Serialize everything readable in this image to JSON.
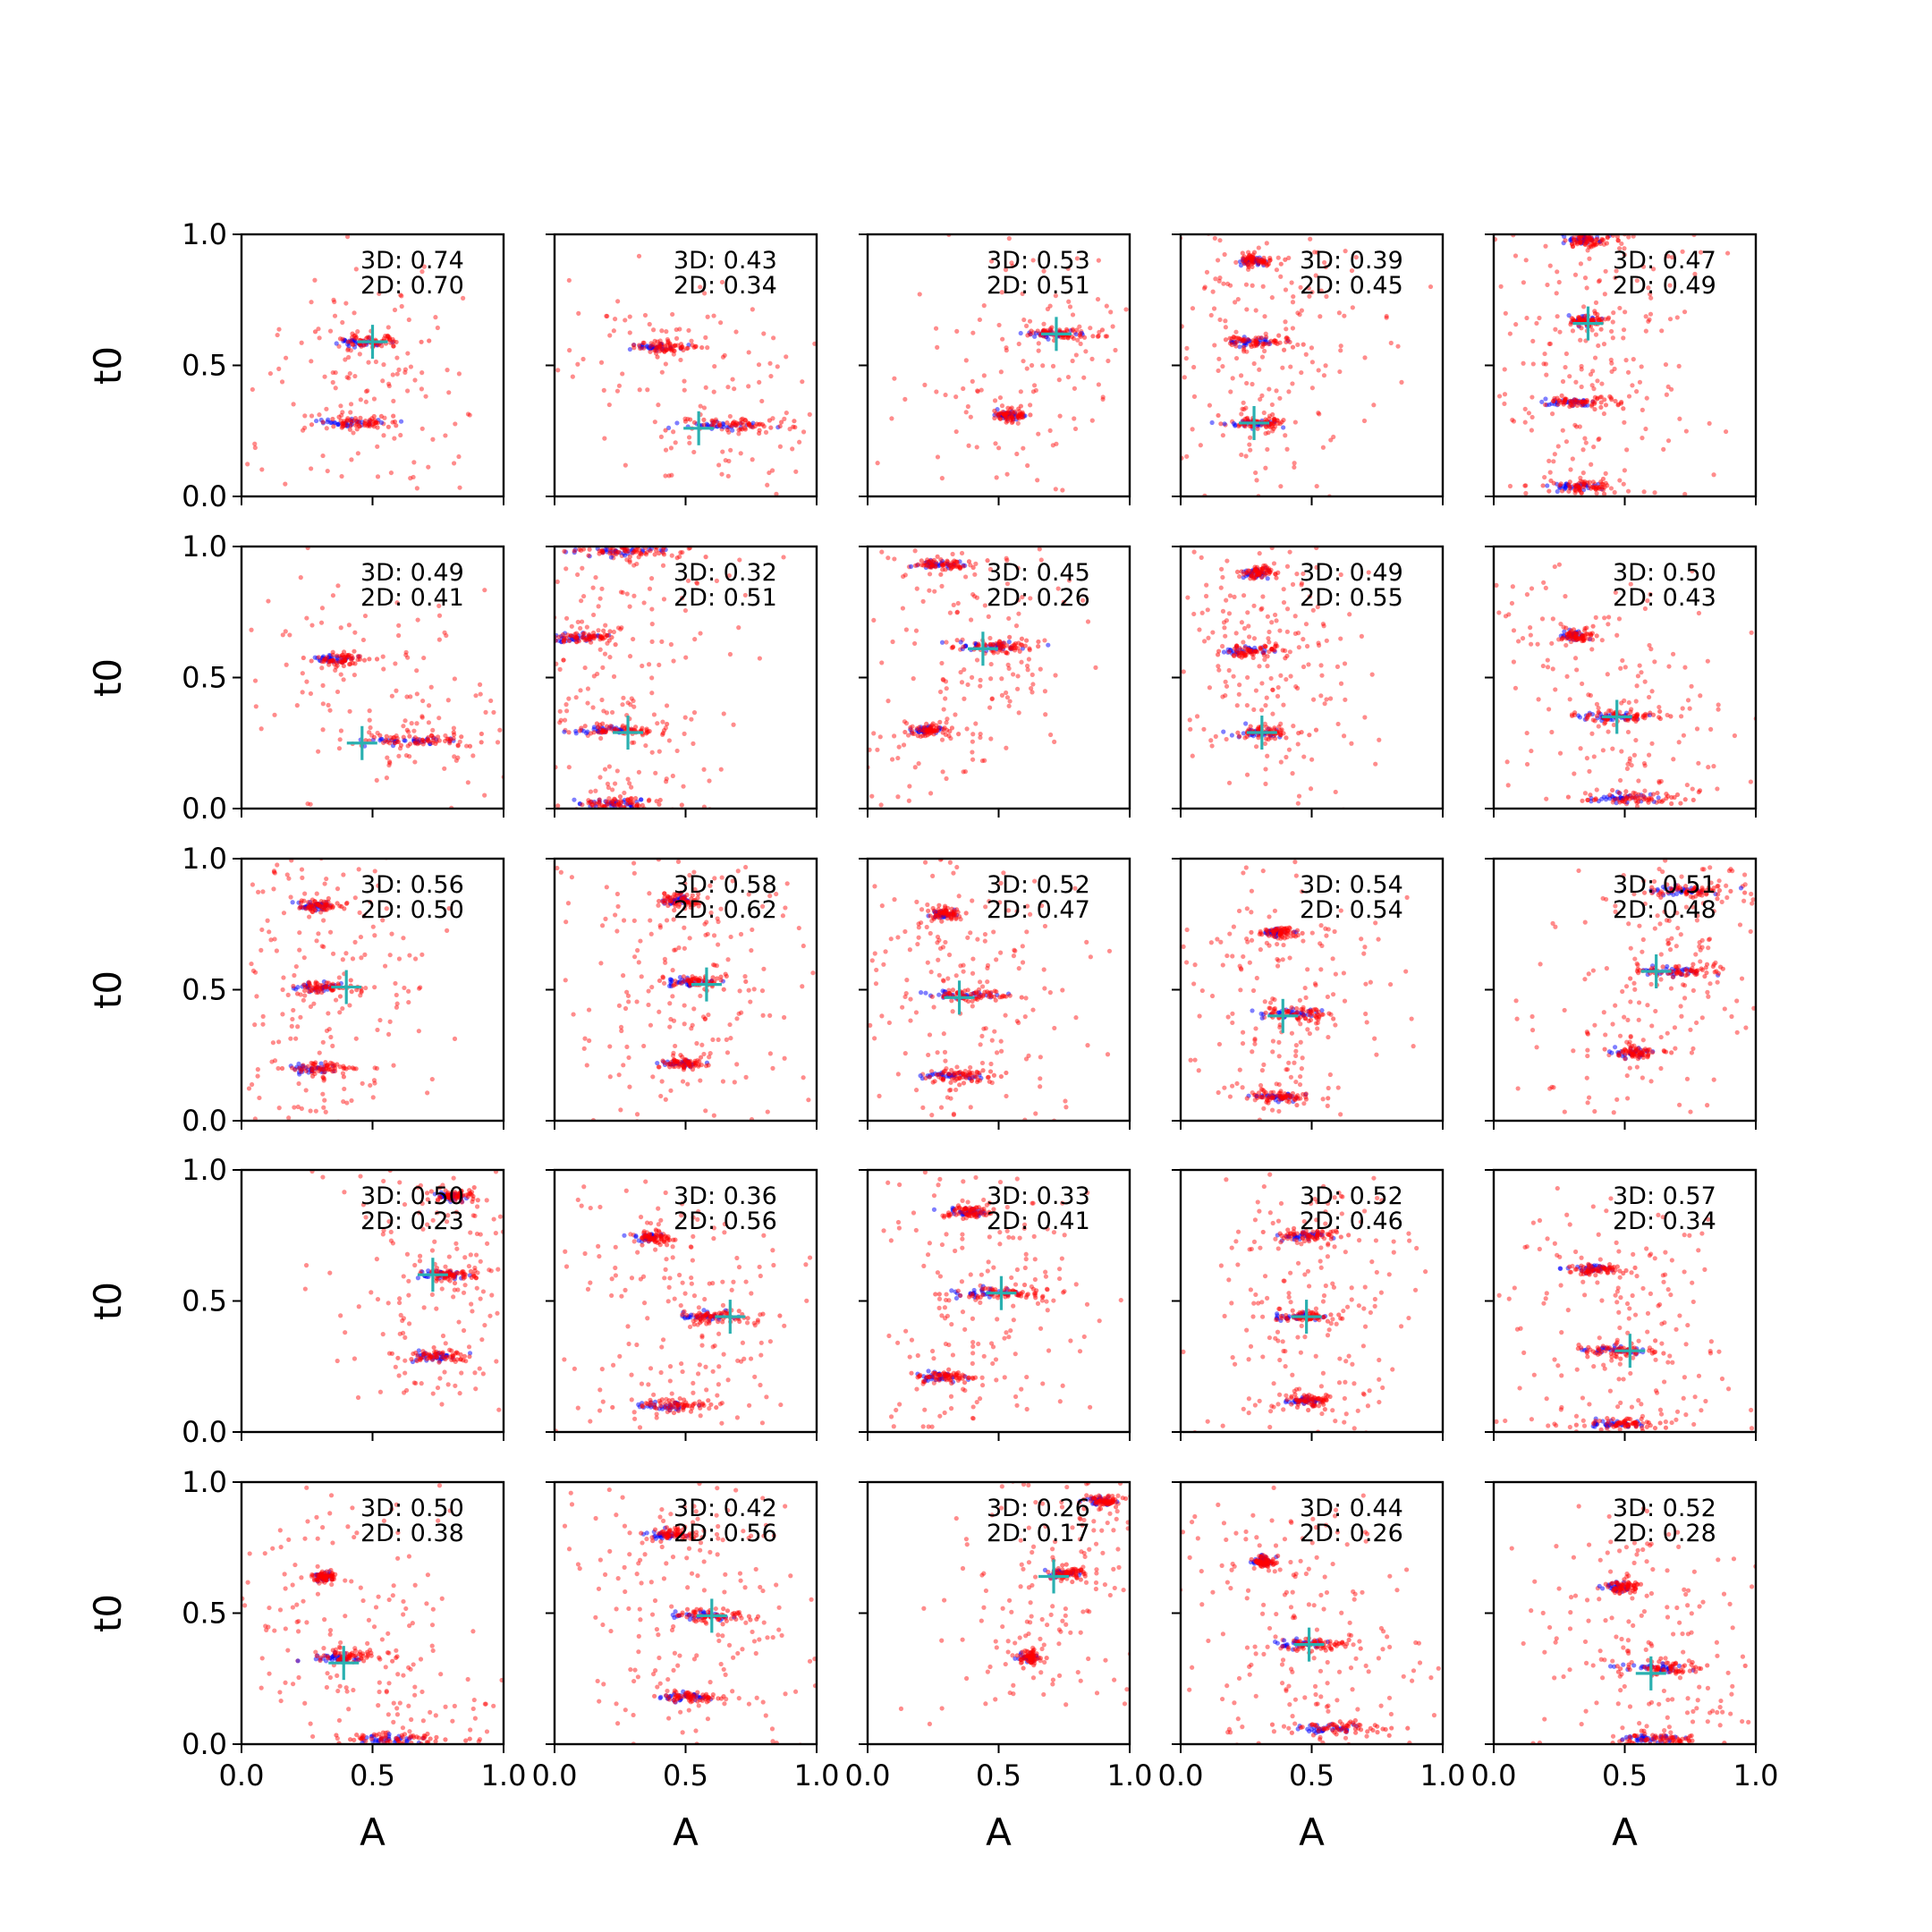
{
  "chart_data": {
    "type": "scatter",
    "layout": {
      "rows": 5,
      "cols": 5
    },
    "xlabel": "A",
    "ylabel": "t0",
    "xlim": [
      0,
      1
    ],
    "ylim": [
      0,
      1
    ],
    "xticks": [
      0.0,
      0.5,
      1.0
    ],
    "yticks": [
      0.0,
      0.5,
      1.0
    ],
    "x_tick_labels": [
      "0.0",
      "0.5",
      "1.0"
    ],
    "y_tick_labels": [
      "0.0",
      "0.5",
      "1.0"
    ],
    "grid": false,
    "colors": {
      "samples_red": "#ff0000",
      "samples_blue": "#0000ff",
      "marker": "#2ab0b0"
    },
    "panels": [
      {
        "annotation_3d": "3D: 0.74",
        "annotation_2d": "2D: 0.70",
        "marker": [
          0.5,
          0.59
        ],
        "clusters": [
          {
            "x": 0.5,
            "y": 0.59,
            "spread": 0.12
          },
          {
            "x": 0.45,
            "y": 0.28,
            "spread": 0.12
          }
        ]
      },
      {
        "annotation_3d": "3D: 0.43",
        "annotation_2d": "2D: 0.34",
        "marker": [
          0.55,
          0.26
        ],
        "clusters": [
          {
            "x": 0.42,
            "y": 0.57,
            "spread": 0.1
          },
          {
            "x": 0.7,
            "y": 0.27,
            "spread": 0.18
          }
        ]
      },
      {
        "annotation_3d": "3D: 0.53",
        "annotation_2d": "2D: 0.51",
        "marker": [
          0.72,
          0.62
        ],
        "clusters": [
          {
            "x": 0.74,
            "y": 0.62,
            "spread": 0.12
          },
          {
            "x": 0.55,
            "y": 0.31,
            "spread": 0.06
          }
        ]
      },
      {
        "annotation_3d": "3D: 0.39",
        "annotation_2d": "2D: 0.45",
        "marker": [
          0.28,
          0.28
        ],
        "clusters": [
          {
            "x": 0.29,
            "y": 0.9,
            "spread": 0.06
          },
          {
            "x": 0.3,
            "y": 0.59,
            "spread": 0.12
          },
          {
            "x": 0.3,
            "y": 0.28,
            "spread": 0.1
          }
        ]
      },
      {
        "annotation_3d": "3D: 0.47",
        "annotation_2d": "2D: 0.49",
        "marker": [
          0.36,
          0.66
        ],
        "clusters": [
          {
            "x": 0.36,
            "y": 0.98,
            "spread": 0.08
          },
          {
            "x": 0.36,
            "y": 0.67,
            "spread": 0.06
          },
          {
            "x": 0.35,
            "y": 0.36,
            "spread": 0.12
          },
          {
            "x": 0.35,
            "y": 0.04,
            "spread": 0.12
          }
        ]
      },
      {
        "annotation_3d": "3D: 0.49",
        "annotation_2d": "2D: 0.41",
        "marker": [
          0.46,
          0.25
        ],
        "clusters": [
          {
            "x": 0.38,
            "y": 0.57,
            "spread": 0.1
          },
          {
            "x": 0.7,
            "y": 0.26,
            "spread": 0.2
          }
        ]
      },
      {
        "annotation_3d": "3D: 0.32",
        "annotation_2d": "2D: 0.51",
        "marker": [
          0.28,
          0.29
        ],
        "clusters": [
          {
            "x": 0.25,
            "y": 0.3,
            "spread": 0.14
          },
          {
            "x": 0.12,
            "y": 0.65,
            "spread": 0.1
          },
          {
            "x": 0.3,
            "y": 0.98,
            "spread": 0.2
          },
          {
            "x": 0.25,
            "y": 0.02,
            "spread": 0.15
          }
        ]
      },
      {
        "annotation_3d": "3D: 0.45",
        "annotation_2d": "2D: 0.26",
        "marker": [
          0.44,
          0.61
        ],
        "clusters": [
          {
            "x": 0.3,
            "y": 0.93,
            "spread": 0.1
          },
          {
            "x": 0.5,
            "y": 0.62,
            "spread": 0.16
          },
          {
            "x": 0.25,
            "y": 0.3,
            "spread": 0.08
          }
        ]
      },
      {
        "annotation_3d": "3D: 0.49",
        "annotation_2d": "2D: 0.55",
        "marker": [
          0.31,
          0.29
        ],
        "clusters": [
          {
            "x": 0.3,
            "y": 0.9,
            "spread": 0.06
          },
          {
            "x": 0.28,
            "y": 0.6,
            "spread": 0.1
          },
          {
            "x": 0.32,
            "y": 0.29,
            "spread": 0.1
          }
        ]
      },
      {
        "annotation_3d": "3D: 0.50",
        "annotation_2d": "2D: 0.43",
        "marker": [
          0.47,
          0.35
        ],
        "clusters": [
          {
            "x": 0.32,
            "y": 0.66,
            "spread": 0.05
          },
          {
            "x": 0.48,
            "y": 0.35,
            "spread": 0.14
          },
          {
            "x": 0.55,
            "y": 0.04,
            "spread": 0.18
          }
        ]
      },
      {
        "annotation_3d": "3D: 0.56",
        "annotation_2d": "2D: 0.50",
        "marker": [
          0.4,
          0.51
        ],
        "clusters": [
          {
            "x": 0.3,
            "y": 0.82,
            "spread": 0.08
          },
          {
            "x": 0.32,
            "y": 0.51,
            "spread": 0.12
          },
          {
            "x": 0.3,
            "y": 0.2,
            "spread": 0.12
          }
        ]
      },
      {
        "annotation_3d": "3D: 0.58",
        "annotation_2d": "2D: 0.62",
        "marker": [
          0.58,
          0.52
        ],
        "clusters": [
          {
            "x": 0.48,
            "y": 0.84,
            "spread": 0.06
          },
          {
            "x": 0.55,
            "y": 0.53,
            "spread": 0.12
          },
          {
            "x": 0.5,
            "y": 0.22,
            "spread": 0.08
          }
        ]
      },
      {
        "annotation_3d": "3D: 0.52",
        "annotation_2d": "2D: 0.47",
        "marker": [
          0.35,
          0.47
        ],
        "clusters": [
          {
            "x": 0.3,
            "y": 0.79,
            "spread": 0.06
          },
          {
            "x": 0.4,
            "y": 0.48,
            "spread": 0.14
          },
          {
            "x": 0.35,
            "y": 0.17,
            "spread": 0.12
          }
        ]
      },
      {
        "annotation_3d": "3D: 0.54",
        "annotation_2d": "2D: 0.54",
        "marker": [
          0.39,
          0.4
        ],
        "clusters": [
          {
            "x": 0.38,
            "y": 0.72,
            "spread": 0.06
          },
          {
            "x": 0.45,
            "y": 0.41,
            "spread": 0.14
          },
          {
            "x": 0.4,
            "y": 0.09,
            "spread": 0.1
          }
        ]
      },
      {
        "annotation_3d": "3D: 0.51",
        "annotation_2d": "2D: 0.48",
        "marker": [
          0.62,
          0.57
        ],
        "clusters": [
          {
            "x": 0.75,
            "y": 0.88,
            "spread": 0.14
          },
          {
            "x": 0.72,
            "y": 0.57,
            "spread": 0.14
          },
          {
            "x": 0.55,
            "y": 0.26,
            "spread": 0.08
          }
        ]
      },
      {
        "annotation_3d": "3D: 0.50",
        "annotation_2d": "2D: 0.23",
        "marker": [
          0.73,
          0.6
        ],
        "clusters": [
          {
            "x": 0.82,
            "y": 0.9,
            "spread": 0.08
          },
          {
            "x": 0.8,
            "y": 0.6,
            "spread": 0.1
          },
          {
            "x": 0.75,
            "y": 0.29,
            "spread": 0.1
          }
        ]
      },
      {
        "annotation_3d": "3D: 0.36",
        "annotation_2d": "2D: 0.56",
        "marker": [
          0.67,
          0.44
        ],
        "clusters": [
          {
            "x": 0.38,
            "y": 0.74,
            "spread": 0.06
          },
          {
            "x": 0.6,
            "y": 0.44,
            "spread": 0.14
          },
          {
            "x": 0.48,
            "y": 0.1,
            "spread": 0.14
          }
        ]
      },
      {
        "annotation_3d": "3D: 0.33",
        "annotation_2d": "2D: 0.41",
        "marker": [
          0.51,
          0.53
        ],
        "clusters": [
          {
            "x": 0.4,
            "y": 0.84,
            "spread": 0.08
          },
          {
            "x": 0.52,
            "y": 0.53,
            "spread": 0.18
          },
          {
            "x": 0.3,
            "y": 0.21,
            "spread": 0.1
          }
        ]
      },
      {
        "annotation_3d": "3D: 0.52",
        "annotation_2d": "2D: 0.46",
        "marker": [
          0.48,
          0.44
        ],
        "clusters": [
          {
            "x": 0.5,
            "y": 0.75,
            "spread": 0.1
          },
          {
            "x": 0.48,
            "y": 0.44,
            "spread": 0.1
          },
          {
            "x": 0.5,
            "y": 0.12,
            "spread": 0.08
          }
        ]
      },
      {
        "annotation_3d": "3D: 0.57",
        "annotation_2d": "2D: 0.34",
        "marker": [
          0.52,
          0.31
        ],
        "clusters": [
          {
            "x": 0.4,
            "y": 0.62,
            "spread": 0.1
          },
          {
            "x": 0.5,
            "y": 0.31,
            "spread": 0.14
          },
          {
            "x": 0.5,
            "y": 0.03,
            "spread": 0.14
          }
        ]
      },
      {
        "annotation_3d": "3D: 0.50",
        "annotation_2d": "2D: 0.38",
        "marker": [
          0.39,
          0.31
        ],
        "clusters": [
          {
            "x": 0.32,
            "y": 0.64,
            "spread": 0.04
          },
          {
            "x": 0.42,
            "y": 0.33,
            "spread": 0.12
          },
          {
            "x": 0.6,
            "y": 0.02,
            "spread": 0.2
          }
        ]
      },
      {
        "annotation_3d": "3D: 0.42",
        "annotation_2d": "2D: 0.56",
        "marker": [
          0.6,
          0.49
        ],
        "clusters": [
          {
            "x": 0.45,
            "y": 0.8,
            "spread": 0.08
          },
          {
            "x": 0.6,
            "y": 0.49,
            "spread": 0.14
          },
          {
            "x": 0.52,
            "y": 0.18,
            "spread": 0.1
          }
        ]
      },
      {
        "annotation_3d": "3D: 0.26",
        "annotation_2d": "2D: 0.17",
        "marker": [
          0.71,
          0.64
        ],
        "clusters": [
          {
            "x": 0.9,
            "y": 0.93,
            "spread": 0.06
          },
          {
            "x": 0.76,
            "y": 0.65,
            "spread": 0.06
          },
          {
            "x": 0.62,
            "y": 0.33,
            "spread": 0.04
          }
        ]
      },
      {
        "annotation_3d": "3D: 0.44",
        "annotation_2d": "2D: 0.26",
        "marker": [
          0.49,
          0.38
        ],
        "clusters": [
          {
            "x": 0.32,
            "y": 0.7,
            "spread": 0.04
          },
          {
            "x": 0.5,
            "y": 0.38,
            "spread": 0.12
          },
          {
            "x": 0.6,
            "y": 0.06,
            "spread": 0.18
          }
        ]
      },
      {
        "annotation_3d": "3D: 0.52",
        "annotation_2d": "2D: 0.28",
        "marker": [
          0.6,
          0.27
        ],
        "clusters": [
          {
            "x": 0.5,
            "y": 0.6,
            "spread": 0.06
          },
          {
            "x": 0.65,
            "y": 0.29,
            "spread": 0.16
          },
          {
            "x": 0.62,
            "y": 0.02,
            "spread": 0.14
          }
        ]
      }
    ]
  }
}
